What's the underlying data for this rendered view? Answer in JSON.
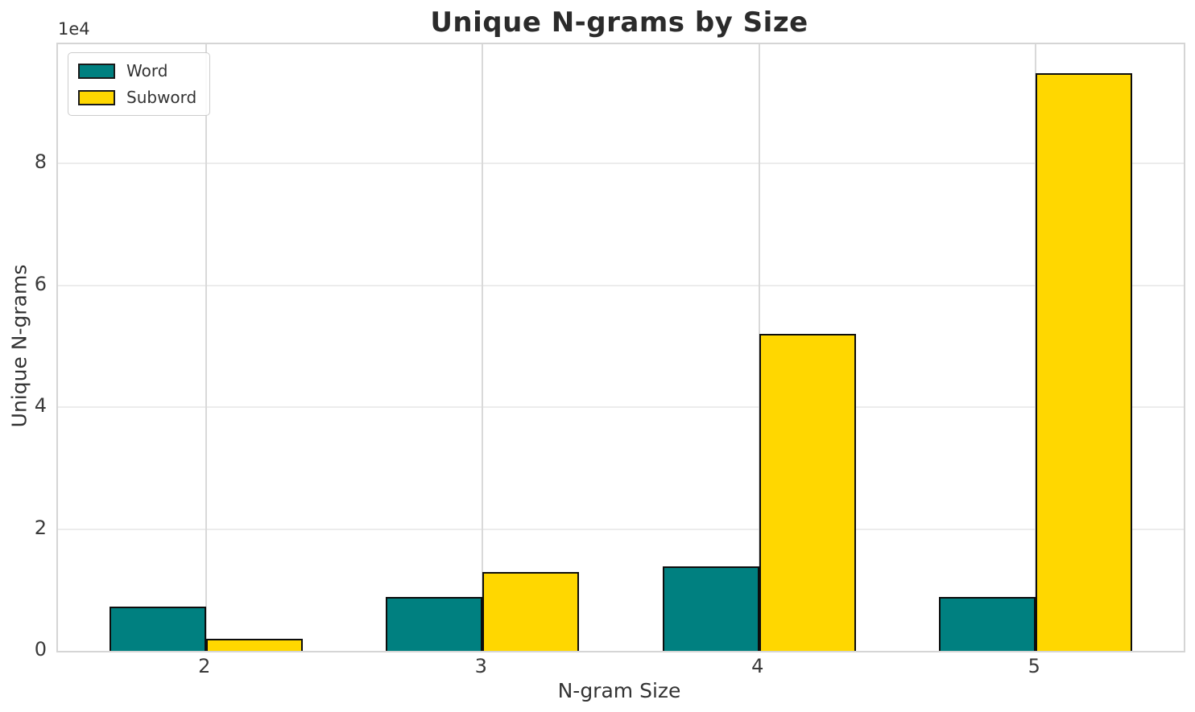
{
  "colors": {
    "word": "#008080",
    "subword": "#FFD700",
    "bar_edge": "#0d0d0d",
    "grid_h": "#ececec",
    "grid_v": "#d9d9d9",
    "spine": "#d5d5d5",
    "text": "#333333",
    "title_text": "#2b2b2b",
    "background": "#ffffff"
  },
  "chart_data": {
    "type": "bar",
    "title": "Unique N-grams by Size",
    "xlabel": "N-gram Size",
    "ylabel": "Unique N-grams",
    "y_offset_text": "1e4",
    "categories": [
      "2",
      "3",
      "4",
      "5"
    ],
    "series": [
      {
        "name": "Word",
        "color": "#008080",
        "values": [
          7300,
          8900,
          13800,
          8900
        ]
      },
      {
        "name": "Subword",
        "color": "#FFD700",
        "values": [
          2000,
          12900,
          52000,
          94800
        ]
      }
    ],
    "ylim": [
      0,
      99540
    ],
    "xlim": [
      -0.535,
      3.535
    ],
    "yticks": [
      0,
      20000,
      40000,
      60000,
      80000
    ],
    "ytick_labels": [
      "0",
      "2",
      "4",
      "6",
      "8"
    ],
    "bar_width": 0.35,
    "grid": true,
    "legend_position": "upper left"
  }
}
